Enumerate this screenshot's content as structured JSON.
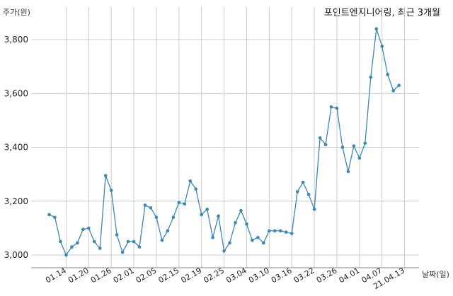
{
  "chart_data": {
    "type": "line",
    "title": "포인트엔지니어링, 최근 3개월",
    "ylabel": "주가(원)",
    "xlabel": "날짜(일)",
    "ylim": [
      2950,
      3900
    ],
    "yticks": [
      3000,
      3200,
      3400,
      3600,
      3800
    ],
    "ytick_labels": [
      "3,000",
      "3,200",
      "3,400",
      "3,600",
      "3,800"
    ],
    "grid": true,
    "color": "#3a87b8",
    "tick_labels": [
      {
        "i": 3,
        "label": "01.14"
      },
      {
        "i": 7,
        "label": "01.20"
      },
      {
        "i": 11,
        "label": "01.26"
      },
      {
        "i": 15,
        "label": "02.01"
      },
      {
        "i": 19,
        "label": "02.05"
      },
      {
        "i": 23,
        "label": "02.15"
      },
      {
        "i": 27,
        "label": "02.19"
      },
      {
        "i": 31,
        "label": "02.25"
      },
      {
        "i": 35,
        "label": "03.04"
      },
      {
        "i": 39,
        "label": "03.10"
      },
      {
        "i": 43,
        "label": "03.16"
      },
      {
        "i": 47,
        "label": "03.22"
      },
      {
        "i": 51,
        "label": "03.26"
      },
      {
        "i": 55,
        "label": "04.01"
      },
      {
        "i": 59,
        "label": "04.07"
      },
      {
        "i": 63,
        "label": "21.04.13"
      }
    ],
    "values": [
      3150,
      3140,
      3050,
      3000,
      3030,
      3045,
      3095,
      3100,
      3050,
      3025,
      3295,
      3240,
      3075,
      3010,
      3050,
      3050,
      3030,
      3185,
      3175,
      3140,
      3055,
      3090,
      3140,
      3195,
      3190,
      3275,
      3245,
      3150,
      3170,
      3065,
      3145,
      3015,
      3045,
      3120,
      3165,
      3115,
      3055,
      3065,
      3045,
      3090,
      3090,
      3090,
      3085,
      3080,
      3235,
      3270,
      3225,
      3170,
      3435,
      3410,
      3550,
      3545,
      3400,
      3310,
      3405,
      3360,
      3415,
      3660,
      3840,
      3775,
      3670,
      3610,
      3630
    ]
  }
}
